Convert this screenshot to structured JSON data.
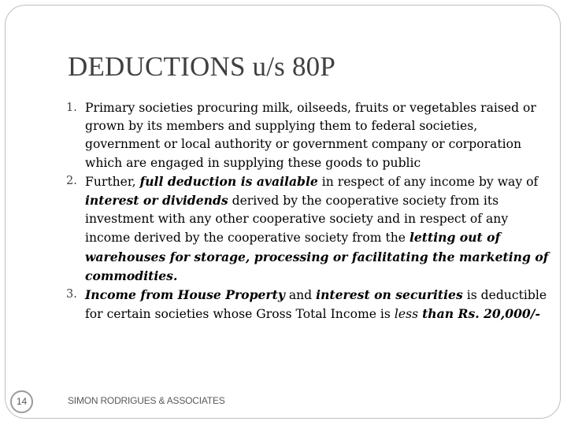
{
  "slide": {
    "title": "DEDUCTIONS u/s 80P",
    "items": [
      {
        "number": "1.",
        "text": "Primary societies procuring milk, oilseeds, fruits or vegetables raised or grown by its members and supplying them to federal societies, government or local authority or government company or corporation which are engaged in supplying these goods to public"
      },
      {
        "number": "2.",
        "parts": [
          "Further, ",
          "full deduction is available",
          " in respect of any income by way of ",
          "interest or dividends",
          " derived by the cooperative society from its investment with any other cooperative society and in respect of any income derived by the cooperative society from the ",
          "letting out of warehouses for storage, processing or facilitating the marketing of commodities."
        ]
      },
      {
        "number": "3.",
        "parts": [
          "Income from House Property",
          " and ",
          "interest on securities",
          " is deductible for certain societies whose Gross Total Income is ",
          "less",
          " ",
          "than Rs. 20,000/-"
        ]
      }
    ],
    "footer": "SIMON RODRIGUES & ASSOCIATES",
    "page_number": "14"
  }
}
